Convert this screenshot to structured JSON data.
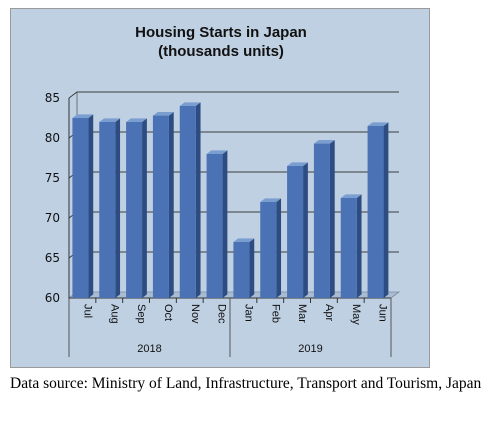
{
  "chart_data": {
    "type": "bar",
    "title_line1": "Housing Starts in Japan",
    "title_line2": "(thousands units)",
    "categories": [
      "Jul",
      "Aug",
      "Sep",
      "Oct",
      "Nov",
      "Dec",
      "Jan",
      "Feb",
      "Mar",
      "Apr",
      "May",
      "Jun"
    ],
    "groups": [
      {
        "label": "2018",
        "start": 0,
        "end": 5
      },
      {
        "label": "2019",
        "start": 6,
        "end": 11
      }
    ],
    "values": [
      82.5,
      82.0,
      82.0,
      82.8,
      84.0,
      78.0,
      67.0,
      72.0,
      76.5,
      79.3,
      72.5,
      81.5
    ],
    "yticks": [
      60,
      65,
      70,
      75,
      80,
      85
    ],
    "ylim": [
      60,
      85
    ],
    "grid": true,
    "colors": {
      "bar_front": "#4a72b4",
      "bar_side": "#2c4c82",
      "bar_top": "#7b9ed0",
      "plot_bg": "#bfd0e3",
      "grid": "#3c3c3c"
    }
  },
  "caption": "Data source: Ministry of Land, Infrastructure, Transport and Tourism, Japan"
}
